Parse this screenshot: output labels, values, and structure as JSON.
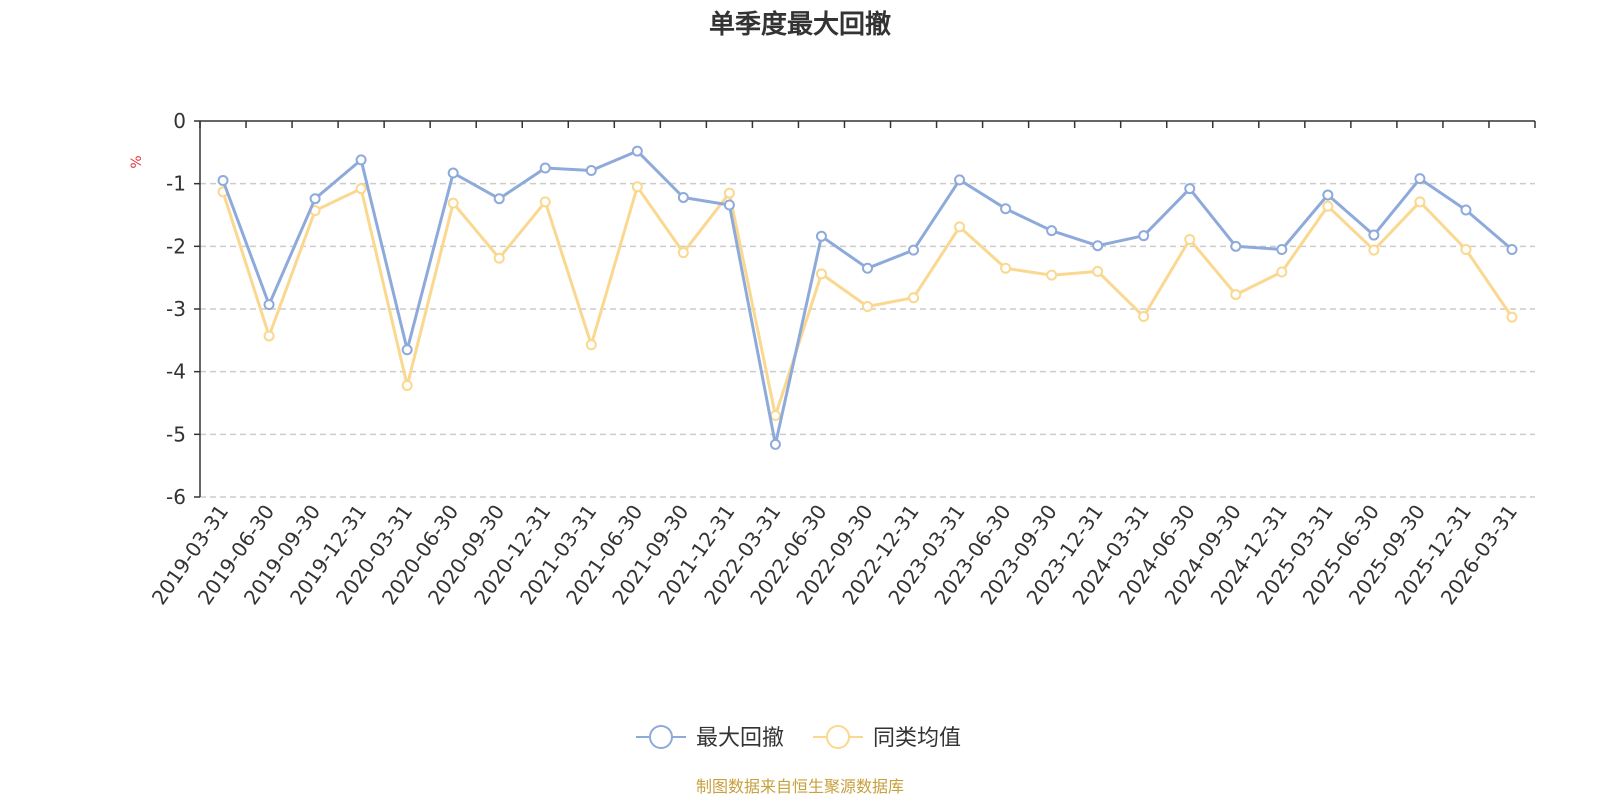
{
  "chart_data": {
    "type": "line",
    "title": "单季度最大回撤",
    "ylabel": "%",
    "ylim": [
      -6,
      0
    ],
    "yticks": [
      0,
      -1,
      -2,
      -3,
      -4,
      -5,
      -6
    ],
    "grid": true,
    "legend_position": "bottom-center",
    "categories": [
      "2019-03-31",
      "2019-06-30",
      "2019-09-30",
      "2019-12-31",
      "2020-03-31",
      "2020-06-30",
      "2020-09-30",
      "2020-12-31",
      "2021-03-31",
      "2021-06-30",
      "2021-09-30",
      "2021-12-31",
      "2022-03-31",
      "2022-06-30",
      "2022-09-30",
      "2022-12-31",
      "2023-03-31",
      "2023-06-30",
      "2023-09-30",
      "2023-12-31",
      "2024-03-31",
      "2024-06-30",
      "2024-09-30",
      "2024-12-31",
      "2025-03-31",
      "2025-06-30",
      "2025-09-30",
      "2025-12-31",
      "2026-03-31"
    ],
    "series": [
      {
        "name": "最大回撤",
        "color": "#8eaadb",
        "values": [
          -0.95,
          -2.93,
          -1.24,
          -0.62,
          -3.65,
          -0.83,
          -1.24,
          -0.75,
          -0.79,
          -0.48,
          -1.22,
          -1.34,
          -5.16,
          -1.84,
          -2.35,
          -2.06,
          -0.94,
          -1.4,
          -1.75,
          -1.99,
          -1.83,
          -1.08,
          -2.0,
          -2.05,
          -1.18,
          -1.82,
          -0.92,
          -1.42,
          -2.05
        ]
      },
      {
        "name": "同类均值",
        "color": "#fad88f",
        "values": [
          -1.13,
          -3.43,
          -1.43,
          -1.08,
          -4.22,
          -1.31,
          -2.19,
          -1.29,
          -3.57,
          -1.05,
          -2.1,
          -1.15,
          -4.7,
          -2.44,
          -2.96,
          -2.82,
          -1.69,
          -2.35,
          -2.46,
          -2.4,
          -3.12,
          -1.89,
          -2.77,
          -2.41,
          -1.36,
          -2.06,
          -1.29,
          -2.05,
          -3.13
        ]
      }
    ]
  },
  "source": "制图数据来自恒生聚源数据库"
}
